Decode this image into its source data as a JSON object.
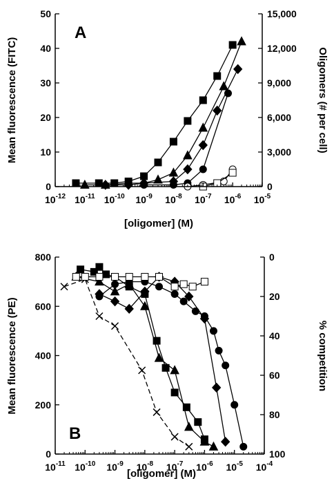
{
  "chart_data": [
    {
      "type": "line",
      "panel_label": "A",
      "xlabel": "[oligomer] (M)",
      "ylabel": "Mean fluorescence (FITC)",
      "y2label": "Oligomers (# per cell)",
      "x_scale": "log",
      "xlim": [
        1e-12,
        1e-05
      ],
      "ylim": [
        0,
        50
      ],
      "y2lim": [
        0,
        15000
      ],
      "x_ticks": [
        {
          "value": 1e-12,
          "base": "10",
          "exp": "-12"
        },
        {
          "value": 1e-11,
          "base": "10",
          "exp": "-11"
        },
        {
          "value": 1e-10,
          "base": "10",
          "exp": "-10"
        },
        {
          "value": 1e-09,
          "base": "10",
          "exp": "-9"
        },
        {
          "value": 1e-08,
          "base": "10",
          "exp": "-8"
        },
        {
          "value": 1e-07,
          "base": "10",
          "exp": "-7"
        },
        {
          "value": 1e-06,
          "base": "10",
          "exp": "-6"
        },
        {
          "value": 1e-05,
          "base": "10",
          "exp": "-5"
        }
      ],
      "y_ticks": [
        "0",
        "10",
        "20",
        "30",
        "40",
        "50"
      ],
      "y2_ticks": [
        {
          "value": 0,
          "label": "0"
        },
        {
          "value": 3000,
          "label": "3,000"
        },
        {
          "value": 6000,
          "label": "6,000"
        },
        {
          "value": 9000,
          "label": "9,000"
        },
        {
          "value": 12000,
          "label": "12,000"
        },
        {
          "value": 15000,
          "label": "15,000"
        }
      ],
      "grid": false,
      "series": [
        {
          "marker": "square",
          "fill": "#000000",
          "dash": "",
          "x": [
            5e-12,
            3e-11,
            1e-10,
            3e-10,
            1e-09,
            3e-09,
            1e-08,
            3e-08,
            1e-07,
            3e-07,
            1e-06
          ],
          "y": [
            1,
            1,
            1,
            1.5,
            3,
            7,
            13,
            19,
            25,
            32,
            41
          ]
        },
        {
          "marker": "triangle",
          "fill": "#000000",
          "dash": "",
          "x": [
            1e-11,
            5e-11,
            3e-10,
            1e-09,
            3e-09,
            1e-08,
            3e-08,
            1e-07,
            5e-07,
            2e-06
          ],
          "y": [
            0.5,
            0.5,
            1,
            1,
            2,
            4,
            9,
            17,
            29,
            42
          ]
        },
        {
          "marker": "diamond",
          "fill": "#000000",
          "dash": "",
          "x": [
            5e-11,
            3e-10,
            1e-09,
            1e-08,
            3e-08,
            1e-07,
            3e-07,
            1.5e-06
          ],
          "y": [
            0.5,
            0.5,
            1,
            1.5,
            5,
            12,
            22,
            34
          ]
        },
        {
          "marker": "circle",
          "fill": "#000000",
          "dash": "",
          "x": [
            1e-09,
            1e-08,
            3e-08,
            1e-07,
            7e-07
          ],
          "y": [
            0.5,
            0.5,
            1,
            5,
            27
          ]
        },
        {
          "marker": "circle",
          "fill": "#ffffff",
          "dash": "",
          "x": [
            3e-08,
            1e-07,
            5e-07,
            1e-06
          ],
          "y": [
            0,
            0.5,
            1.5,
            5
          ]
        },
        {
          "marker": "square",
          "fill": "#ffffff",
          "dash": "",
          "x": [
            1e-07,
            3e-07,
            1e-06
          ],
          "y": [
            0,
            1,
            4
          ]
        }
      ]
    },
    {
      "type": "line",
      "panel_label": "B",
      "xlabel": "[oligomer] (M)",
      "ylabel": "Mean fluorescence (PE)",
      "y2label": "% competition",
      "x_scale": "log",
      "xlim": [
        1e-11,
        0.0001
      ],
      "ylim": [
        0,
        800
      ],
      "y2lim": [
        100,
        0
      ],
      "x_ticks": [
        {
          "value": 1e-11,
          "base": "10",
          "exp": "-11"
        },
        {
          "value": 1e-10,
          "base": "10",
          "exp": "-10"
        },
        {
          "value": 1e-09,
          "base": "10",
          "exp": "-9"
        },
        {
          "value": 1e-08,
          "base": "10",
          "exp": "-8"
        },
        {
          "value": 1e-07,
          "base": "10",
          "exp": "-7"
        },
        {
          "value": 1e-06,
          "base": "10",
          "exp": "-6"
        },
        {
          "value": 1e-05,
          "base": "10",
          "exp": "-5"
        },
        {
          "value": 0.0001,
          "base": "10",
          "exp": "-4"
        }
      ],
      "y_ticks": [
        "0",
        "200",
        "400",
        "600",
        "800"
      ],
      "y2_ticks": [
        {
          "value": 0,
          "label": "0"
        },
        {
          "value": 20,
          "label": "20"
        },
        {
          "value": 40,
          "label": "40"
        },
        {
          "value": 60,
          "label": "60"
        },
        {
          "value": 80,
          "label": "80"
        },
        {
          "value": 100,
          "label": "100"
        }
      ],
      "grid": false,
      "series": [
        {
          "marker": "x",
          "fill": "#000000",
          "dash": "7,4",
          "x": [
            2e-11,
            1e-10,
            3e-10,
            1e-09,
            8e-09,
            2.5e-08,
            1e-07,
            3e-07
          ],
          "y": [
            680,
            710,
            560,
            520,
            340,
            170,
            70,
            30
          ]
        },
        {
          "marker": "square",
          "fill": "#000000",
          "dash": "",
          "x": [
            7e-11,
            2e-10,
            3e-10,
            5e-10,
            1e-09,
            3e-09,
            1e-08,
            2.5e-08,
            5e-08,
            1e-07,
            2.5e-07,
            6e-07,
            1e-06
          ],
          "y": [
            750,
            740,
            760,
            730,
            720,
            680,
            650,
            460,
            350,
            250,
            190,
            130,
            60
          ]
        },
        {
          "marker": "triangle",
          "fill": "#000000",
          "dash": "",
          "x": [
            5e-11,
            3e-10,
            1e-09,
            3e-09,
            1e-08,
            3e-08,
            1e-07,
            3e-07,
            1e-06,
            2e-06
          ],
          "y": [
            720,
            700,
            660,
            690,
            600,
            390,
            340,
            110,
            50,
            30
          ]
        },
        {
          "marker": "diamond",
          "fill": "#000000",
          "dash": "",
          "x": [
            3e-10,
            1e-09,
            3e-09,
            1e-08,
            3e-08,
            1e-07,
            3e-07,
            1e-06,
            2.5e-06,
            5e-06
          ],
          "y": [
            650,
            620,
            590,
            660,
            720,
            700,
            640,
            550,
            270,
            50
          ]
        },
        {
          "marker": "circle",
          "fill": "#000000",
          "dash": "",
          "x": [
            3e-10,
            1e-09,
            3e-09,
            1e-08,
            3e-08,
            1e-07,
            2e-07,
            5e-07,
            1e-06,
            2e-06,
            3e-06,
            5e-06,
            1e-05,
            2e-05
          ],
          "y": [
            640,
            690,
            700,
            700,
            680,
            650,
            620,
            580,
            560,
            500,
            420,
            360,
            200,
            30
          ]
        },
        {
          "marker": "square",
          "fill": "#ffffff",
          "dash": "",
          "x": [
            5e-11,
            1e-10,
            3e-10,
            1e-09,
            3e-09,
            1e-08,
            3e-08,
            1e-07,
            2e-07,
            4e-07,
            1e-06
          ],
          "y": [
            720,
            720,
            720,
            720,
            720,
            720,
            720,
            680,
            690,
            680,
            700
          ]
        }
      ]
    }
  ]
}
